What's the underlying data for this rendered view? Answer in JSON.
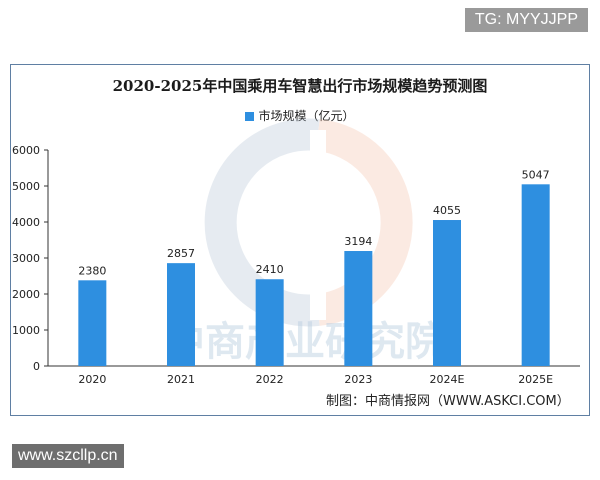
{
  "overlay": {
    "tg_label": "TG: MYYJJPP",
    "site_label": "www.szcllp.cn"
  },
  "watermark": {
    "text": "中商产业研究院"
  },
  "credit": "制图：中商情报网（WWW.ASKCI.COM）",
  "colors": {
    "bar": "#2E8FE0",
    "axis": "#333333",
    "frame": "#5f7fa3"
  },
  "chart_data": {
    "type": "bar",
    "title": "2020-2025年中国乘用车智慧出行市场规模趋势预测图",
    "categories": [
      "2020",
      "2021",
      "2022",
      "2023",
      "2024E",
      "2025E"
    ],
    "series": [
      {
        "name": "市场规模（亿元）",
        "values": [
          2380,
          2857,
          2410,
          3194,
          4055,
          5047
        ]
      }
    ],
    "data_labels": [
      "2380",
      "2857",
      "2410",
      "3194",
      "4055",
      "5047"
    ],
    "yticks": [
      0,
      1000,
      2000,
      3000,
      4000,
      5000,
      6000
    ],
    "ylim": [
      0,
      6000
    ],
    "xlabel": "",
    "ylabel": "",
    "grid": false,
    "legend_position": "top-center"
  }
}
